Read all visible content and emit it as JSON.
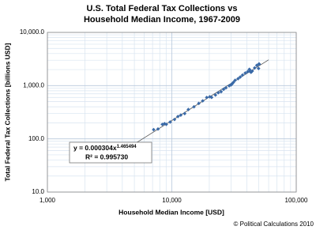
{
  "chart_data": {
    "type": "scatter",
    "title_lines": [
      "U.S. Total Federal Tax Collections vs",
      "Household Median Income, 1967-2009"
    ],
    "x_label": "Household Median Income [USD]",
    "y_label": "Total Federal Tax Collections [billions USD]",
    "credit": "© Political Calculations 2010",
    "x_log": true,
    "y_log": true,
    "grid": true,
    "xlim": [
      1000,
      100000
    ],
    "ylim": [
      10,
      10000
    ],
    "xticks": [
      {
        "value": 1000,
        "label": "1,000"
      },
      {
        "value": 10000,
        "label": "10,000"
      },
      {
        "value": 100000,
        "label": "100,000"
      }
    ],
    "yticks": [
      {
        "value": 10,
        "label": "10.0"
      },
      {
        "value": 100,
        "label": "100.0"
      },
      {
        "value": 1000,
        "label": "1,000.0"
      },
      {
        "value": 10000,
        "label": "10,000.0"
      }
    ],
    "series": [
      {
        "color": "#3a6aa8",
        "x": [
          7143,
          7743,
          8389,
          8734,
          9028,
          9697,
          10512,
          11197,
          11800,
          12686,
          13572,
          15064,
          16461,
          17710,
          19074,
          20171,
          20885,
          22415,
          23618,
          24897,
          26061,
          27225,
          28906,
          29943,
          30126,
          30636,
          31241,
          32264,
          34076,
          35492,
          37005,
          38885,
          40696,
          41990,
          42228,
          42409,
          43318,
          44334,
          46326,
          48201,
          50233,
          50303,
          49777
        ],
        "values": [
          149,
          153,
          187,
          193,
          187,
          207,
          231,
          263,
          279,
          298,
          356,
          400,
          463,
          517,
          599,
          618,
          601,
          666,
          734,
          769,
          854,
          909,
          991,
          1032,
          1055,
          1091,
          1154,
          1259,
          1352,
          1453,
          1579,
          1722,
          1827,
          2025,
          1991,
          1853,
          1782,
          1880,
          2154,
          2407,
          2568,
          2524,
          2105
        ]
      }
    ],
    "trendline": {
      "color": "#555555",
      "x": [
        5000,
        60000
      ],
      "values": [
        80,
        3055
      ]
    },
    "equation": {
      "base": "y = 0.000304x",
      "exponent": "1.465494",
      "r_squared": "R² = 0.995730"
    }
  }
}
